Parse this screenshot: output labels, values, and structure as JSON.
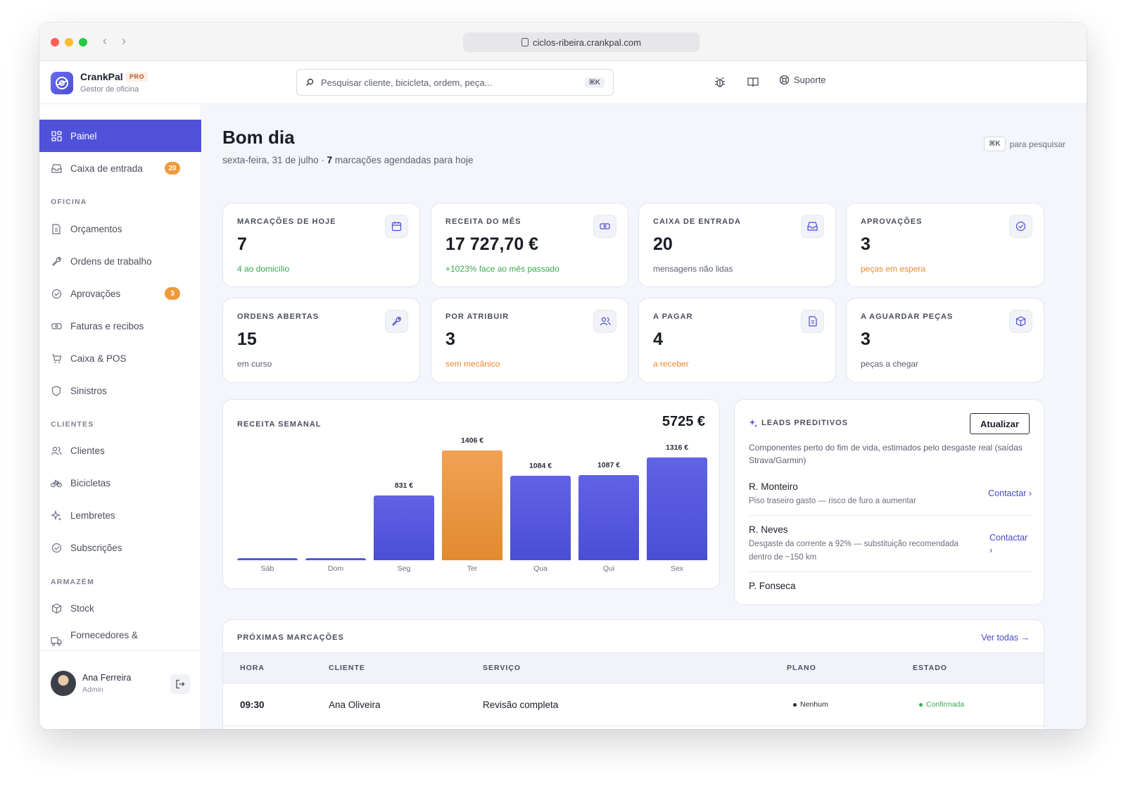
{
  "browser": {
    "url": "ciclos-ribeira.crankpal.com"
  },
  "brand": {
    "name": "CrankPal",
    "tier": "PRO",
    "subtitle": "Gestor de oficina"
  },
  "search": {
    "placeholder": "Pesquisar cliente, bicicleta, ordem, peça...",
    "shortcut": "⌘K"
  },
  "topbar": {
    "support_label": "Suporte"
  },
  "sidebar": {
    "main": [
      {
        "label": "Painel"
      },
      {
        "label": "Caixa de entrada",
        "badge": "20"
      }
    ],
    "sections": {
      "oficina": "OFICINA",
      "clientes": "CLIENTES",
      "armazem": "ARMAZÉM"
    },
    "oficina_items": [
      {
        "label": "Orçamentos"
      },
      {
        "label": "Ordens de trabalho"
      },
      {
        "label": "Aprovações",
        "badge": "3"
      },
      {
        "label": "Faturas e recibos"
      },
      {
        "label": "Caixa & POS"
      },
      {
        "label": "Sinistros"
      }
    ],
    "clientes_items": [
      {
        "label": "Clientes"
      },
      {
        "label": "Bicicletas"
      },
      {
        "label": "Lembretes"
      },
      {
        "label": "Subscrições"
      }
    ],
    "armazem_items": [
      {
        "label": "Stock"
      },
      {
        "label": "Fornecedores &"
      }
    ],
    "user": {
      "name": "Ana Ferreira",
      "role": "Admin"
    }
  },
  "header": {
    "greeting": "Bom dia",
    "date": "sexta-feira, 31 de julho · ",
    "count": "7",
    "count_suffix": " marcações agendadas para hoje",
    "hint_key": "⌘K",
    "hint_text": "para pesquisar"
  },
  "stats": [
    {
      "label": "MARCAÇÕES DE HOJE",
      "value": "7",
      "foot": "4 ao domicílio",
      "tone": "green",
      "icon": "calendar-icon"
    },
    {
      "label": "RECEITA DO MÊS",
      "value": "17 727,70 €",
      "foot": "+1023% face ao mês passado",
      "tone": "green",
      "icon": "cash-icon"
    },
    {
      "label": "CAIXA DE ENTRADA",
      "value": "20",
      "foot": "mensagens não lidas",
      "tone": "grey",
      "icon": "inbox-icon"
    },
    {
      "label": "APROVAÇÕES",
      "value": "3",
      "foot": "peças em espera",
      "tone": "orange",
      "icon": "check-circle-icon"
    },
    {
      "label": "ORDENS ABERTAS",
      "value": "15",
      "foot": "em curso",
      "tone": "grey",
      "icon": "wrench-icon"
    },
    {
      "label": "POR ATRIBUIR",
      "value": "3",
      "foot": "sem mecânico",
      "tone": "orange",
      "icon": "users-icon"
    },
    {
      "label": "A PAGAR",
      "value": "4",
      "foot": "a receber",
      "tone": "orange",
      "icon": "document-icon"
    },
    {
      "label": "A AGUARDAR PEÇAS",
      "value": "3",
      "foot": "peças a chegar",
      "tone": "grey",
      "icon": "box-icon"
    }
  ],
  "chart_data": {
    "type": "bar",
    "title": "RECEITA SEMANAL",
    "total": "5725 €",
    "categories": [
      "Sáb",
      "Dom",
      "Seg",
      "Ter",
      "Qua",
      "Qui",
      "Sex"
    ],
    "values": [
      0,
      0,
      831,
      1406,
      1084,
      1087,
      1316
    ],
    "value_labels": [
      "",
      "",
      "831 €",
      "1406 €",
      "1084 €",
      "1087 €",
      "1316 €"
    ],
    "highlight_index": 3,
    "colors": {
      "bar": "#5558e0",
      "highlight": "#ec9a45"
    },
    "ylim": [
      0,
      1406
    ],
    "grid": false
  },
  "leads": {
    "title": "LEADS PREDITIVOS",
    "refresh_label": "Atualizar",
    "description": "Componentes perto do fim de vida, estimados pelo desgaste real (saídas Strava/Garmin)",
    "items": [
      {
        "name": "R. Monteiro",
        "text": "Piso traseiro gasto — risco de furo a aumentar",
        "action": "Contactar ›"
      },
      {
        "name": "R. Neves",
        "text": "Desgaste da corrente a 92% — substituição recomendada dentro de ~150 km",
        "action": "Contactar ›"
      },
      {
        "name": "P. Fonseca",
        "text": "",
        "action": ""
      }
    ]
  },
  "appointments": {
    "title": "PRÓXIMAS MARCAÇÕES",
    "view_all": "Ver todas →",
    "columns": [
      "HORA",
      "CLIENTE",
      "SERVIÇO",
      "PLANO",
      "ESTADO"
    ],
    "rows": [
      {
        "time": "09:30",
        "client": "Ana Oliveira",
        "service": "Revisão completa",
        "plan": "Nenhum",
        "status": "Confirmada"
      }
    ]
  },
  "colors": {
    "accent": "#4f52d9",
    "success": "#3aa84f",
    "warning": "#eb8a2e"
  }
}
